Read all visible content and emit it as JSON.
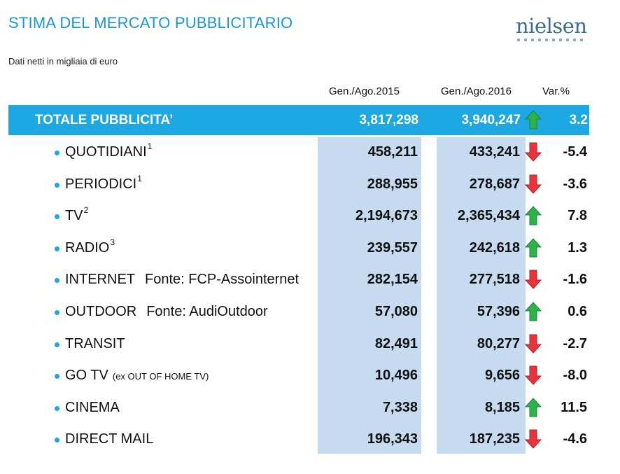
{
  "header": {
    "title": "STIMA DEL MERCATO PUBBLICITARIO",
    "subtitle": "Dati netti in migliaia di euro",
    "logo_text": "nielsen"
  },
  "colors": {
    "title": "#1b96d8",
    "total_bar": "#1ea8e3",
    "band": "#c6daf0",
    "up": "#2db34a",
    "down": "#e8353b"
  },
  "chart_data": {
    "type": "table",
    "columns": [
      "Gen./Ago.2015",
      "Gen./Ago.2016",
      "Var.%"
    ],
    "total": {
      "label": "TOTALE PUBBLICITA’",
      "v2015": "3,817,298",
      "v2016": "3,940,247",
      "trend": "up",
      "var": "3.2"
    },
    "rows": [
      {
        "label": "QUOTIDIANI",
        "sup": "1",
        "note": "",
        "small": "",
        "v2015": "458,211",
        "v2016": "433,241",
        "trend": "down",
        "var": "-5.4"
      },
      {
        "label": "PERIODICI",
        "sup": "1",
        "note": "",
        "small": "",
        "v2015": "288,955",
        "v2016": "278,687",
        "trend": "down",
        "var": "-3.6"
      },
      {
        "label": "TV",
        "sup": "2",
        "note": "",
        "small": "",
        "v2015": "2,194,673",
        "v2016": "2,365,434",
        "trend": "up",
        "var": "7.8"
      },
      {
        "label": "RADIO",
        "sup": "3",
        "note": "",
        "small": "",
        "v2015": "239,557",
        "v2016": "242,618",
        "trend": "up",
        "var": "1.3"
      },
      {
        "label": "INTERNET",
        "sup": "",
        "note": "Fonte: FCP-Assointernet",
        "small": "",
        "v2015": "282,154",
        "v2016": "277,518",
        "trend": "down",
        "var": "-1.6"
      },
      {
        "label": "OUTDOOR",
        "sup": "",
        "note": "Fonte: AudiOutdoor",
        "small": "",
        "v2015": "57,080",
        "v2016": "57,396",
        "trend": "up",
        "var": "0.6"
      },
      {
        "label": "TRANSIT",
        "sup": "",
        "note": "",
        "small": "",
        "v2015": "82,491",
        "v2016": "80,277",
        "trend": "down",
        "var": "-2.7"
      },
      {
        "label": "GO TV",
        "sup": "",
        "note": "",
        "small": "(ex OUT OF HOME TV)",
        "v2015": "10,496",
        "v2016": "9,656",
        "trend": "down",
        "var": "-8.0"
      },
      {
        "label": "CINEMA",
        "sup": "",
        "note": "",
        "small": "",
        "v2015": "7,338",
        "v2016": "8,185",
        "trend": "up",
        "var": "11.5"
      },
      {
        "label": "DIRECT MAIL",
        "sup": "",
        "note": "",
        "small": "",
        "v2015": "196,343",
        "v2016": "187,235",
        "trend": "down",
        "var": "-4.6"
      }
    ]
  }
}
